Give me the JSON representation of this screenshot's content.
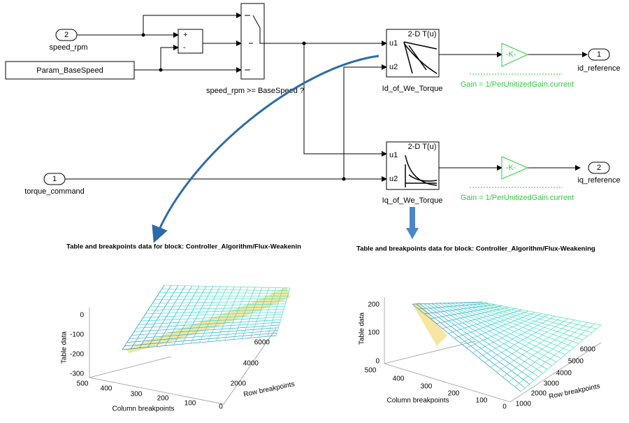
{
  "blocks": {
    "speed_inport": {
      "number": "2",
      "label": "speed_rpm"
    },
    "torque_inport": {
      "number": "1",
      "label": "torque_command"
    },
    "base_speed": {
      "label": "Param_BaseSpeed"
    },
    "sum": {
      "signs": [
        "+",
        "-"
      ]
    },
    "switch": {
      "label": "speed_rpm >= BaseSpeed ?"
    },
    "id_table": {
      "title": "2-D T(u)",
      "inputs": [
        "u1",
        "u2"
      ],
      "label": "Id_of_We_Torque"
    },
    "iq_table": {
      "title": "2-D T(u)",
      "inputs": [
        "u1",
        "u2"
      ],
      "label": "Iq_of_We_Torque"
    },
    "id_gain": {
      "text": "-K-",
      "label": "Gain = 1/PerUnitizedGain.current"
    },
    "iq_gain": {
      "text": "-K-",
      "label": "Gain = 1/PerUnitizedGain.current"
    },
    "id_outport": {
      "number": "1",
      "label": "id_reference"
    },
    "iq_outport": {
      "number": "2",
      "label": "iq_reference"
    }
  },
  "plots": [
    {
      "title": "Table and breakpoints data for block: Controller_Algorithm/Flux-Weakenin",
      "z_label": "Table data",
      "x_label": "Column breakpoints",
      "y_label": "Row breakpoints",
      "z_ticks": [
        "0",
        "-100",
        "-200",
        "-300"
      ],
      "x_ticks": [
        "500",
        "400",
        "300",
        "200",
        "100",
        "0"
      ],
      "y_ticks": [
        "6000",
        "4000",
        "2000"
      ]
    },
    {
      "title": "Table and breakpoints data for block: Controller_Algorithm/Flux-Weakening",
      "z_label": "Table data",
      "x_label": "Column breakpoints",
      "y_label": "Row breakpoints",
      "z_ticks": [
        "200",
        "100",
        "0"
      ],
      "x_ticks": [
        "500",
        "400",
        "300",
        "200",
        "100",
        "0"
      ],
      "y_ticks": [
        "6000",
        "5000",
        "4000",
        "3000",
        "2000",
        "1000"
      ]
    }
  ]
}
